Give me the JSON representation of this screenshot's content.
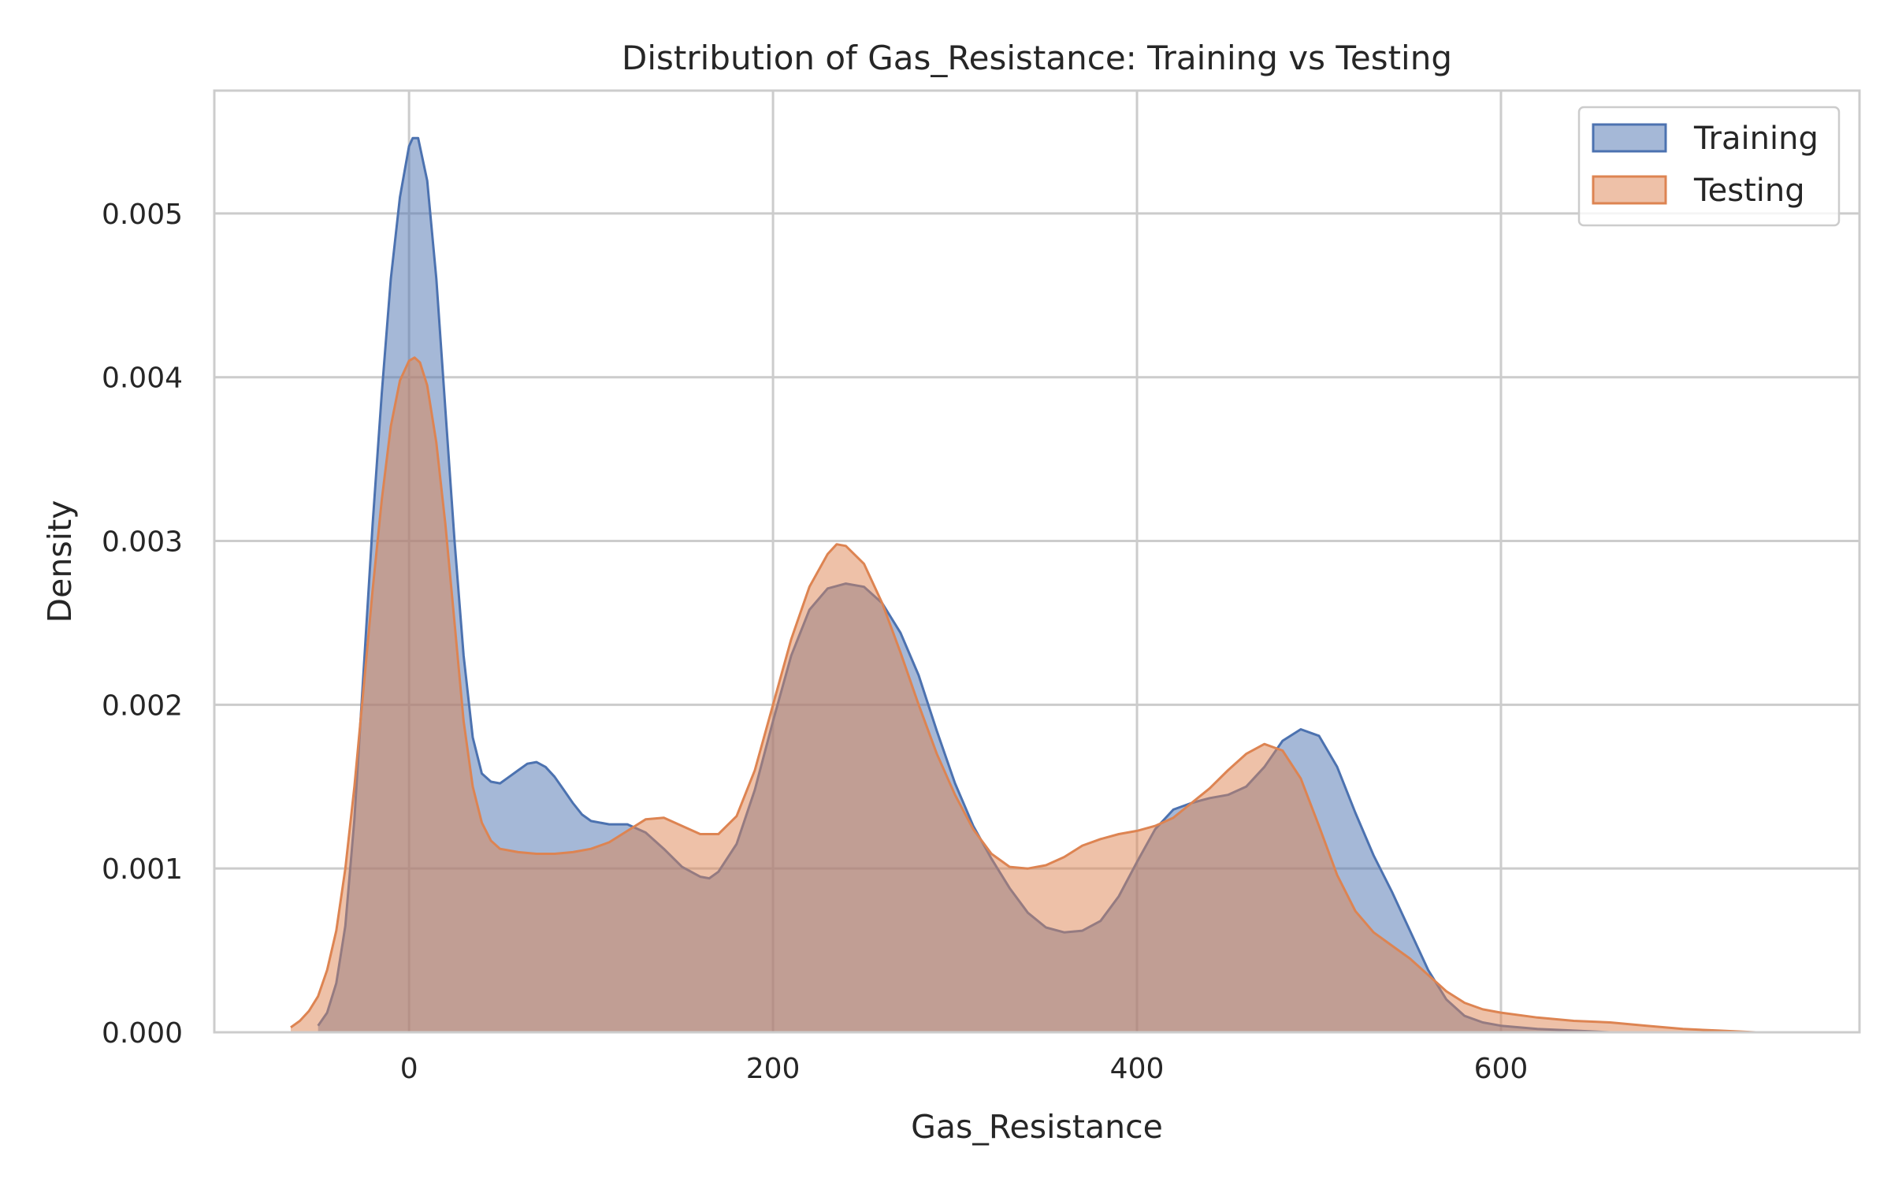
{
  "chart_data": {
    "type": "area",
    "title": "Distribution of Gas_Resistance: Training vs Testing",
    "xlabel": "Gas_Resistance",
    "ylabel": "Density",
    "xlim": [
      -107,
      797
    ],
    "ylim": [
      0,
      0.00575
    ],
    "xticks": [
      0,
      200,
      400,
      600
    ],
    "yticks": [
      0.0,
      0.001,
      0.002,
      0.003,
      0.004,
      0.005
    ],
    "xtick_labels": [
      "0",
      "200",
      "400",
      "600"
    ],
    "ytick_labels": [
      "0.000",
      "0.001",
      "0.002",
      "0.003",
      "0.004",
      "0.005"
    ],
    "grid": true,
    "legend_position": "top-right",
    "series": [
      {
        "name": "Training",
        "color": "#4c72b0",
        "points": [
          [
            -50,
            4e-05
          ],
          [
            -45,
            0.00012
          ],
          [
            -40,
            0.0003
          ],
          [
            -35,
            0.00065
          ],
          [
            -30,
            0.0013
          ],
          [
            -25,
            0.0022
          ],
          [
            -20,
            0.0031
          ],
          [
            -15,
            0.0039
          ],
          [
            -10,
            0.0046
          ],
          [
            -5,
            0.0051
          ],
          [
            0,
            0.00541
          ],
          [
            2,
            0.00546
          ],
          [
            5,
            0.00546
          ],
          [
            10,
            0.0052
          ],
          [
            15,
            0.0046
          ],
          [
            20,
            0.0038
          ],
          [
            25,
            0.003
          ],
          [
            30,
            0.0023
          ],
          [
            35,
            0.0018
          ],
          [
            40,
            0.00158
          ],
          [
            45,
            0.00153
          ],
          [
            50,
            0.00152
          ],
          [
            55,
            0.00156
          ],
          [
            60,
            0.0016
          ],
          [
            65,
            0.00164
          ],
          [
            70,
            0.00165
          ],
          [
            75,
            0.00162
          ],
          [
            80,
            0.00156
          ],
          [
            85,
            0.00148
          ],
          [
            90,
            0.0014
          ],
          [
            95,
            0.00133
          ],
          [
            100,
            0.00129
          ],
          [
            110,
            0.00127
          ],
          [
            120,
            0.00127
          ],
          [
            130,
            0.00122
          ],
          [
            140,
            0.00112
          ],
          [
            150,
            0.00101
          ],
          [
            160,
            0.00095
          ],
          [
            165,
            0.00094
          ],
          [
            170,
            0.00098
          ],
          [
            180,
            0.00115
          ],
          [
            190,
            0.00148
          ],
          [
            200,
            0.0019
          ],
          [
            210,
            0.0023
          ],
          [
            220,
            0.00258
          ],
          [
            230,
            0.00271
          ],
          [
            240,
            0.00274
          ],
          [
            250,
            0.00272
          ],
          [
            260,
            0.00262
          ],
          [
            270,
            0.00244
          ],
          [
            280,
            0.00218
          ],
          [
            290,
            0.00184
          ],
          [
            300,
            0.00152
          ],
          [
            310,
            0.00126
          ],
          [
            320,
            0.00106
          ],
          [
            330,
            0.00088
          ],
          [
            340,
            0.00073
          ],
          [
            350,
            0.00064
          ],
          [
            360,
            0.00061
          ],
          [
            370,
            0.00062
          ],
          [
            380,
            0.00068
          ],
          [
            390,
            0.00083
          ],
          [
            400,
            0.00104
          ],
          [
            410,
            0.00124
          ],
          [
            420,
            0.00136
          ],
          [
            430,
            0.0014
          ],
          [
            440,
            0.00143
          ],
          [
            450,
            0.00145
          ],
          [
            460,
            0.0015
          ],
          [
            470,
            0.00162
          ],
          [
            480,
            0.00178
          ],
          [
            490,
            0.00185
          ],
          [
            500,
            0.00181
          ],
          [
            510,
            0.00162
          ],
          [
            520,
            0.00134
          ],
          [
            530,
            0.00108
          ],
          [
            540,
            0.00086
          ],
          [
            550,
            0.00062
          ],
          [
            560,
            0.00038
          ],
          [
            570,
            0.0002
          ],
          [
            580,
            0.0001
          ],
          [
            590,
            6e-05
          ],
          [
            600,
            4e-05
          ],
          [
            620,
            2e-05
          ],
          [
            640,
            1e-05
          ],
          [
            660,
            0.0
          ],
          [
            700,
            0.0
          ],
          [
            730,
            0.0
          ]
        ]
      },
      {
        "name": "Testing",
        "color": "#dd8452",
        "points": [
          [
            -65,
            3e-05
          ],
          [
            -60,
            7e-05
          ],
          [
            -55,
            0.00013
          ],
          [
            -50,
            0.00022
          ],
          [
            -45,
            0.00038
          ],
          [
            -40,
            0.00062
          ],
          [
            -35,
            0.001
          ],
          [
            -30,
            0.0015
          ],
          [
            -25,
            0.0021
          ],
          [
            -20,
            0.0027
          ],
          [
            -15,
            0.00325
          ],
          [
            -10,
            0.0037
          ],
          [
            -5,
            0.00398
          ],
          [
            0,
            0.0041
          ],
          [
            3,
            0.00412
          ],
          [
            6,
            0.00409
          ],
          [
            10,
            0.00395
          ],
          [
            15,
            0.0036
          ],
          [
            20,
            0.0031
          ],
          [
            25,
            0.0025
          ],
          [
            30,
            0.0019
          ],
          [
            35,
            0.0015
          ],
          [
            40,
            0.00128
          ],
          [
            45,
            0.00117
          ],
          [
            50,
            0.00112
          ],
          [
            60,
            0.0011
          ],
          [
            70,
            0.00109
          ],
          [
            80,
            0.00109
          ],
          [
            90,
            0.0011
          ],
          [
            100,
            0.00112
          ],
          [
            110,
            0.00116
          ],
          [
            120,
            0.00123
          ],
          [
            130,
            0.0013
          ],
          [
            140,
            0.00131
          ],
          [
            150,
            0.00126
          ],
          [
            160,
            0.00121
          ],
          [
            170,
            0.00121
          ],
          [
            180,
            0.00132
          ],
          [
            190,
            0.0016
          ],
          [
            200,
            0.002
          ],
          [
            210,
            0.0024
          ],
          [
            220,
            0.00272
          ],
          [
            230,
            0.00292
          ],
          [
            235,
            0.00298
          ],
          [
            240,
            0.00297
          ],
          [
            250,
            0.00286
          ],
          [
            260,
            0.00262
          ],
          [
            270,
            0.00232
          ],
          [
            280,
            0.002
          ],
          [
            290,
            0.0017
          ],
          [
            300,
            0.00145
          ],
          [
            310,
            0.00124
          ],
          [
            320,
            0.00109
          ],
          [
            330,
            0.00101
          ],
          [
            340,
            0.001
          ],
          [
            350,
            0.00102
          ],
          [
            360,
            0.00107
          ],
          [
            370,
            0.00114
          ],
          [
            380,
            0.00118
          ],
          [
            390,
            0.00121
          ],
          [
            400,
            0.00123
          ],
          [
            410,
            0.00126
          ],
          [
            420,
            0.00131
          ],
          [
            430,
            0.0014
          ],
          [
            440,
            0.00149
          ],
          [
            450,
            0.0016
          ],
          [
            460,
            0.0017
          ],
          [
            470,
            0.00176
          ],
          [
            480,
            0.00172
          ],
          [
            490,
            0.00155
          ],
          [
            500,
            0.00126
          ],
          [
            510,
            0.00096
          ],
          [
            520,
            0.00074
          ],
          [
            530,
            0.00061
          ],
          [
            540,
            0.00053
          ],
          [
            550,
            0.00045
          ],
          [
            560,
            0.00035
          ],
          [
            570,
            0.00025
          ],
          [
            580,
            0.00018
          ],
          [
            590,
            0.00014
          ],
          [
            600,
            0.00012
          ],
          [
            620,
            9e-05
          ],
          [
            640,
            7e-05
          ],
          [
            660,
            6e-05
          ],
          [
            680,
            4e-05
          ],
          [
            700,
            2e-05
          ],
          [
            720,
            1e-05
          ],
          [
            740,
            0.0
          ]
        ]
      }
    ]
  }
}
